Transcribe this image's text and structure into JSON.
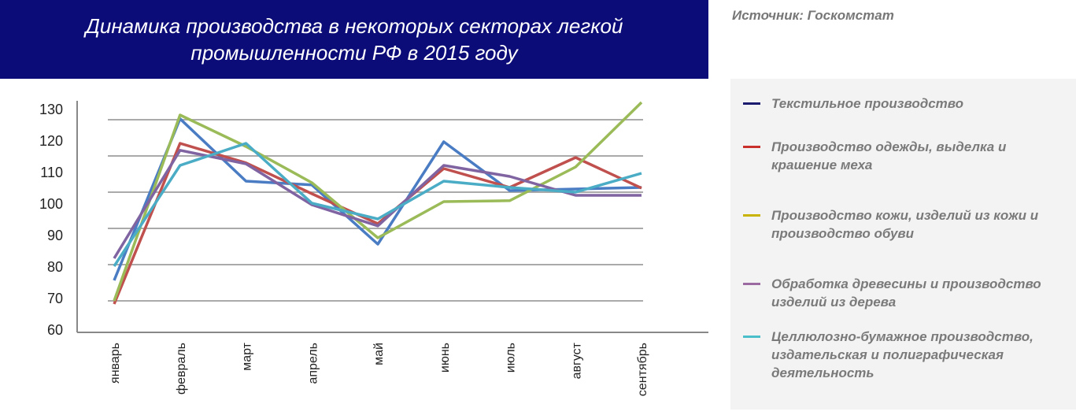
{
  "source": "Источник: Госкомстат",
  "chart_data": {
    "type": "line",
    "title": "Динамика производства в некоторых секторах легкой промышленности РФ в 2015 году",
    "categories": [
      "январь",
      "февраль",
      "март",
      "апрель",
      "май",
      "июнь",
      "июль",
      "август",
      "сентябрь"
    ],
    "yticks": [
      "130",
      "120",
      "110",
      "100",
      "90",
      "80",
      "70",
      "60"
    ],
    "ylim": [
      60,
      130
    ],
    "grid": true,
    "legend": "right",
    "series": [
      {
        "name": "Текстильное производство",
        "color": "#4a7cc4",
        "legend_color": "#1a1a6e",
        "values": [
          75.5,
          126.8,
          107,
          105.8,
          87,
          119.5,
          104,
          104.5,
          105
        ]
      },
      {
        "name": "Производство одежды, выделка и крашение меха",
        "color": "#c0504d",
        "legend_color": "#c9302c",
        "values": [
          68,
          119,
          112.8,
          103,
          93.5,
          111,
          105,
          114.5,
          104.8
        ]
      },
      {
        "name": "Производство кожи, изделий из кожи и производство обуви",
        "color": "#9bbb59",
        "legend_color": "#c8b400",
        "values": [
          69,
          128,
          118,
          106.5,
          89,
          100.5,
          100.8,
          111.5,
          132
        ]
      },
      {
        "name": "Обработка древесины и производство изделий из дерева",
        "color": "#8064a2",
        "legend_color": "#9b6aa0",
        "values": [
          82.5,
          116.8,
          112.5,
          99.5,
          92.8,
          112,
          108.5,
          102.5,
          102.5
        ]
      },
      {
        "name": "Целлюлозно-бумажное производство, издательская и полиграфическая деятельность",
        "color": "#4bacc6",
        "legend_color": "#4bbfc9",
        "values": [
          80,
          112,
          119,
          100,
          95,
          107,
          105,
          103.5,
          109.5
        ]
      }
    ]
  }
}
